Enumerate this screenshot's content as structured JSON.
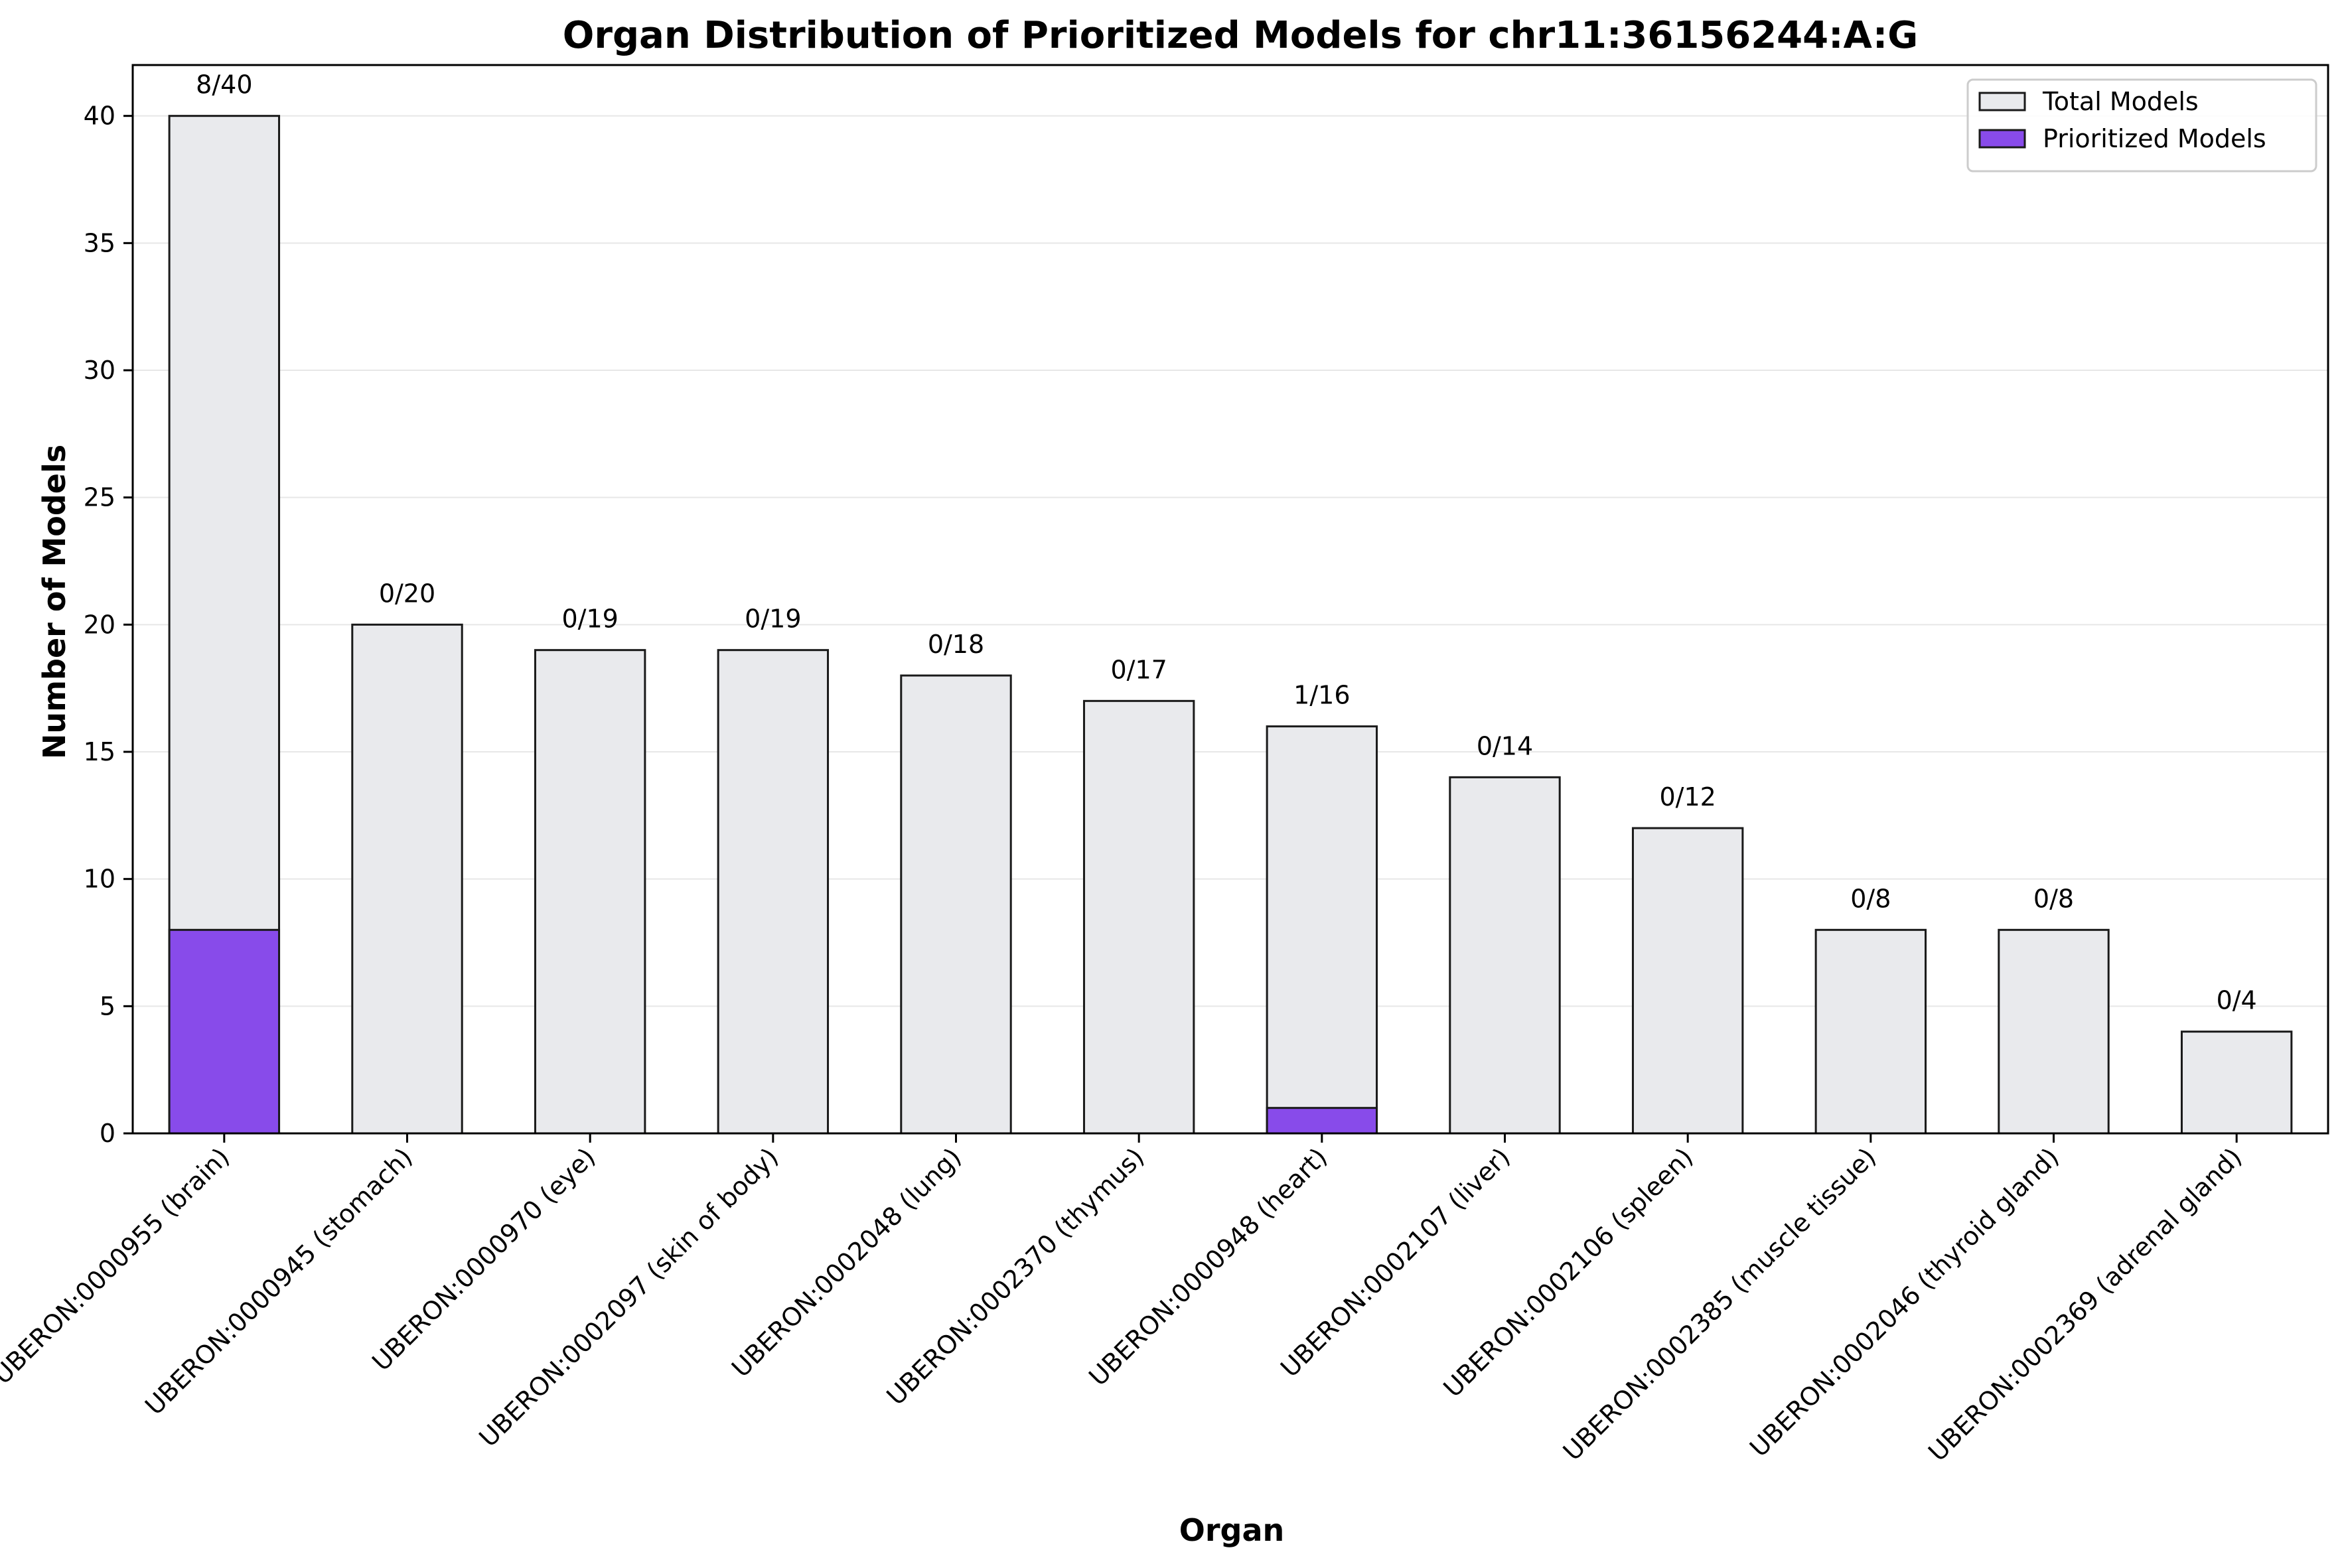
{
  "chart_data": {
    "type": "bar",
    "title": "Organ Distribution of Prioritized Models for chr11:36156244:A:G",
    "xlabel": "Organ",
    "ylabel": "Number of Models",
    "ylim": [
      0,
      42
    ],
    "yticks": [
      0,
      5,
      10,
      15,
      20,
      25,
      30,
      35,
      40
    ],
    "grid": "y",
    "legend_position": "top-right",
    "categories": [
      "UBERON:0000955 (brain)",
      "UBERON:0000945 (stomach)",
      "UBERON:0000970 (eye)",
      "UBERON:0002097 (skin of body)",
      "UBERON:0002048 (lung)",
      "UBERON:0002370 (thymus)",
      "UBERON:0000948 (heart)",
      "UBERON:0002107 (liver)",
      "UBERON:0002106 (spleen)",
      "UBERON:0002385 (muscle tissue)",
      "UBERON:0002046 (thyroid gland)",
      "UBERON:0002369 (adrenal gland)"
    ],
    "series": [
      {
        "name": "Total Models",
        "color": "#e9eaed",
        "values": [
          40,
          20,
          19,
          19,
          18,
          17,
          16,
          14,
          12,
          8,
          8,
          4
        ]
      },
      {
        "name": "Prioritized Models",
        "color": "#884bea",
        "values": [
          8,
          0,
          0,
          0,
          0,
          0,
          1,
          0,
          0,
          0,
          0,
          0
        ]
      }
    ],
    "bar_labels": [
      "8/40",
      "0/20",
      "0/19",
      "0/19",
      "0/18",
      "0/17",
      "1/16",
      "0/14",
      "0/12",
      "0/8",
      "0/8",
      "0/4"
    ]
  }
}
